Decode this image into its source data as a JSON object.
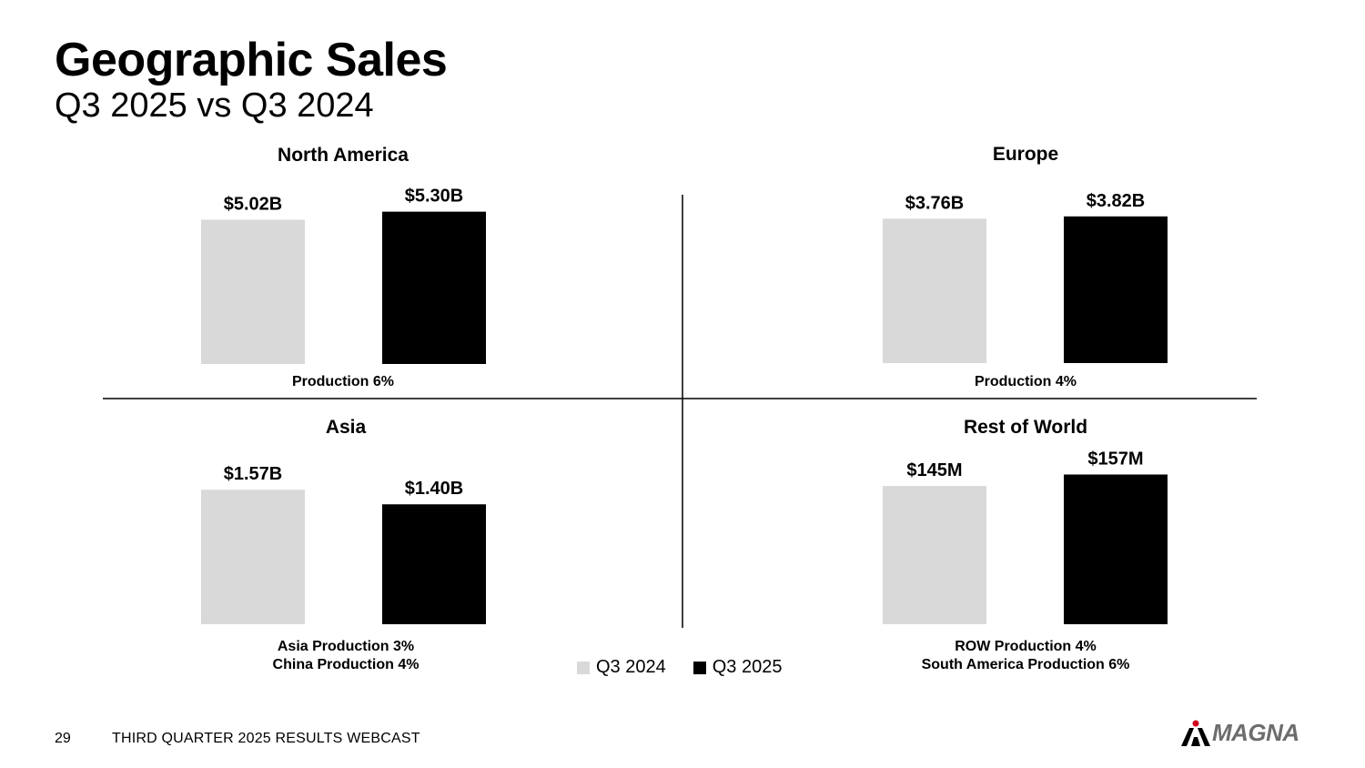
{
  "header": {
    "title": "Geographic Sales",
    "subtitle": "Q3 2025 vs Q3 2024"
  },
  "legend": {
    "items": [
      {
        "label": "Q3 2024",
        "color": "#d9d9d9"
      },
      {
        "label": "Q3 2025",
        "color": "#000000"
      }
    ]
  },
  "footer": {
    "page_number": "29",
    "text": "THIRD QUARTER 2025 RESULTS WEBCAST",
    "logo_text": "MAGNA",
    "logo_accent": "#d0021b",
    "logo_color": "#6d6d6d"
  },
  "chart_data": [
    {
      "type": "bar",
      "title": "North America",
      "categories": [
        "Q3 2024",
        "Q3 2025"
      ],
      "values": [
        5.02,
        5.3
      ],
      "unit": "B",
      "labels": [
        "$5.02B",
        "$5.30B"
      ],
      "ylim": [
        0,
        5.7
      ],
      "notes": [
        "Production 6%"
      ]
    },
    {
      "type": "bar",
      "title": "Europe",
      "categories": [
        "Q3 2024",
        "Q3 2025"
      ],
      "values": [
        3.76,
        3.82
      ],
      "unit": "B",
      "labels": [
        "$3.76B",
        "$3.82B"
      ],
      "ylim": [
        0,
        4.1
      ],
      "notes": [
        "Production 4%"
      ]
    },
    {
      "type": "bar",
      "title": "Asia",
      "categories": [
        "Q3 2024",
        "Q3 2025"
      ],
      "values": [
        1.57,
        1.4
      ],
      "unit": "B",
      "labels": [
        "$1.57B",
        "$1.40B"
      ],
      "ylim": [
        0,
        1.7
      ],
      "notes": [
        "Asia Production 3%",
        "China Production 4%"
      ]
    },
    {
      "type": "bar",
      "title": "Rest of World",
      "categories": [
        "Q3 2024",
        "Q3 2025"
      ],
      "values": [
        145,
        157
      ],
      "unit": "M",
      "labels": [
        "$145M",
        "$157M"
      ],
      "ylim": [
        0,
        167
      ],
      "notes": [
        "ROW Production 4%",
        "South America Production 6%"
      ]
    }
  ]
}
